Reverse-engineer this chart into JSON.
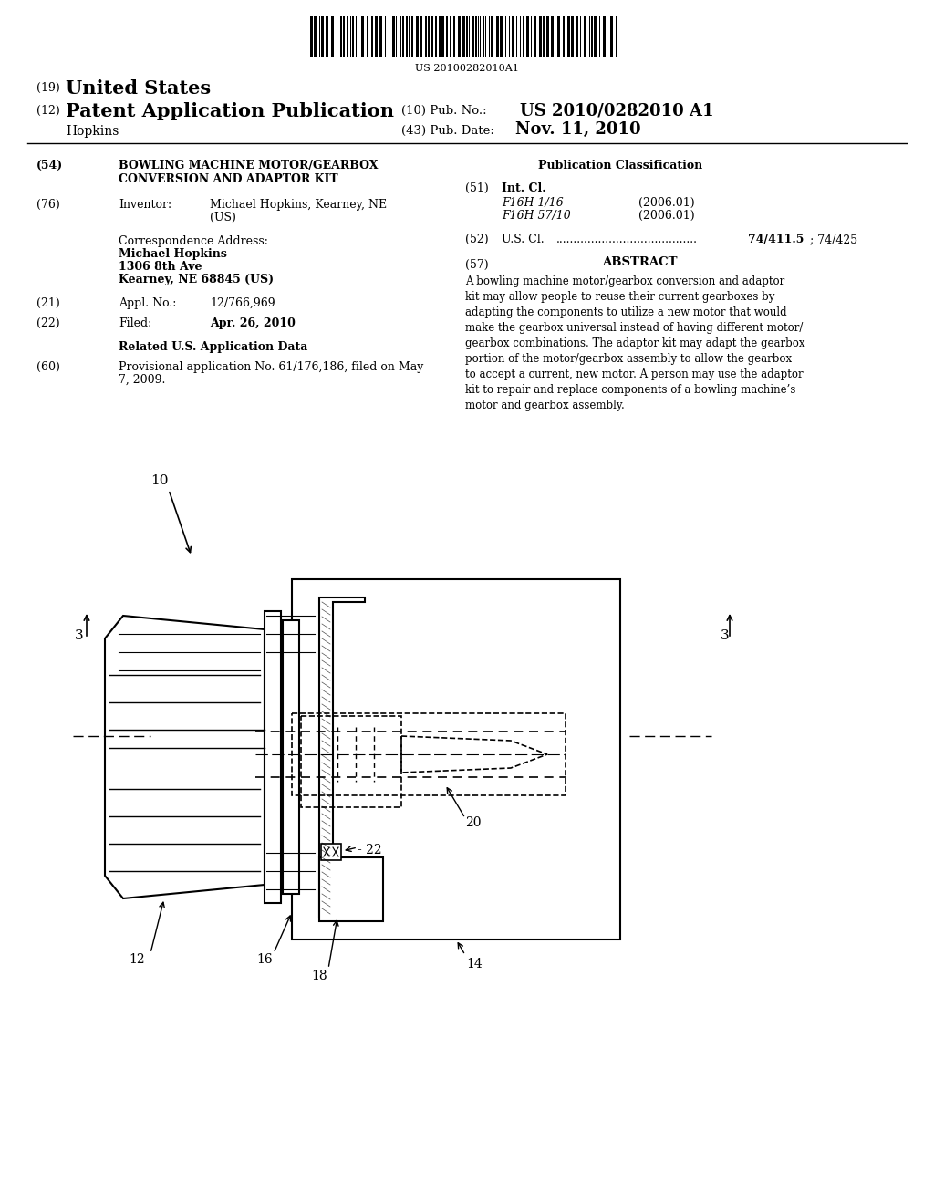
{
  "bg_color": "#ffffff",
  "barcode_text": "US 20100282010A1",
  "title_19": "(19) United States",
  "title_12": "(12) Patent Application Publication",
  "title_name": "Hopkins",
  "pub_no_label": "(10) Pub. No.:",
  "pub_no_value": "US 2010/0282010 A1",
  "pub_date_label": "(43) Pub. Date:",
  "pub_date_value": "Nov. 11, 2010",
  "field54_label": "(54)",
  "field54_text": "BOWLING MACHINE MOTOR/GEARBOX\nCONVERSION AND ADAPTOR KIT",
  "field76_label": "(76)",
  "field76_title": "Inventor:",
  "field76_value": "Michael Hopkins, Kearney, NE\n(US)",
  "corr_label": "Correspondence Address:",
  "corr_name": "Michael Hopkins",
  "corr_addr1": "1306 8th Ave",
  "corr_addr2": "Kearney, NE 68845 (US)",
  "field21_label": "(21)",
  "field21_title": "Appl. No.:",
  "field21_value": "12/766,969",
  "field22_label": "(22)",
  "field22_title": "Filed:",
  "field22_value": "Apr. 26, 2010",
  "related_title": "Related U.S. Application Data",
  "field60_label": "(60)",
  "field60_text": "Provisional application No. 61/176,186, filed on May\n7, 2009.",
  "pub_class_title": "Publication Classification",
  "field51_label": "(51)",
  "field51_title": "Int. Cl.",
  "field51_a": "F16H 1/16",
  "field51_a_date": "(2006.01)",
  "field51_b": "F16H 57/10",
  "field51_b_date": "(2006.01)",
  "field52_label": "(52)",
  "field52_title": "U.S. Cl.",
  "field52_dots": "........................................",
  "field52_value": "74/411.5; 74/425",
  "field57_label": "(57)",
  "field57_title": "ABSTRACT",
  "abstract_text": "A bowling machine motor/gearbox conversion and adaptor kit may allow people to reuse their current gearboxes by adapting the components to utilize a new motor that would make the gearbox universal instead of having different motor/gearbox combinations. The adaptor kit may adapt the gearbox portion of the motor/gearbox assembly to allow the gearbox to accept a current, new motor. A person may use the adaptor kit to repair and replace components of a bowling machine’s motor and gearbox assembly.",
  "label_10": "10",
  "label_12": "12",
  "label_14": "14",
  "label_16": "16",
  "label_18": "18",
  "label_20": "20",
  "label_22": "22",
  "label_3a": "3",
  "label_3b": "3"
}
